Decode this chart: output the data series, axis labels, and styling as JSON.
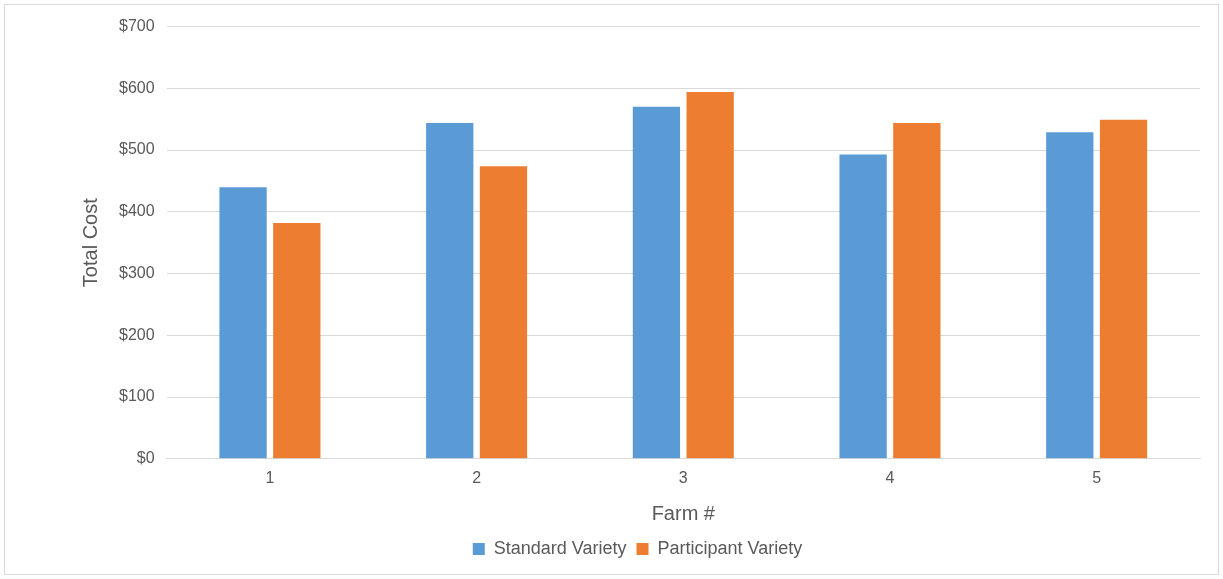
{
  "chart_data": {
    "type": "bar",
    "xlabel": "Farm #",
    "ylabel": "Total Cost",
    "categories": [
      "1",
      "2",
      "3",
      "4",
      "5"
    ],
    "series": [
      {
        "name": "Standard Variety",
        "color": "#5b9bd5",
        "values": [
          440,
          544,
          570,
          493,
          529
        ]
      },
      {
        "name": "Participant Variety",
        "color": "#ed7d31",
        "values": [
          382,
          474,
          594,
          544,
          549
        ]
      }
    ],
    "ylim": [
      0,
      700
    ],
    "yticks": [
      {
        "value": 0,
        "label": "$0"
      },
      {
        "value": 100,
        "label": "$100"
      },
      {
        "value": 200,
        "label": "$200"
      },
      {
        "value": 300,
        "label": "$300"
      },
      {
        "value": 400,
        "label": "$400"
      },
      {
        "value": 500,
        "label": "$500"
      },
      {
        "value": 600,
        "label": "$600"
      },
      {
        "value": 700,
        "label": "$700"
      }
    ],
    "grid": "y",
    "legend": "bottom"
  }
}
